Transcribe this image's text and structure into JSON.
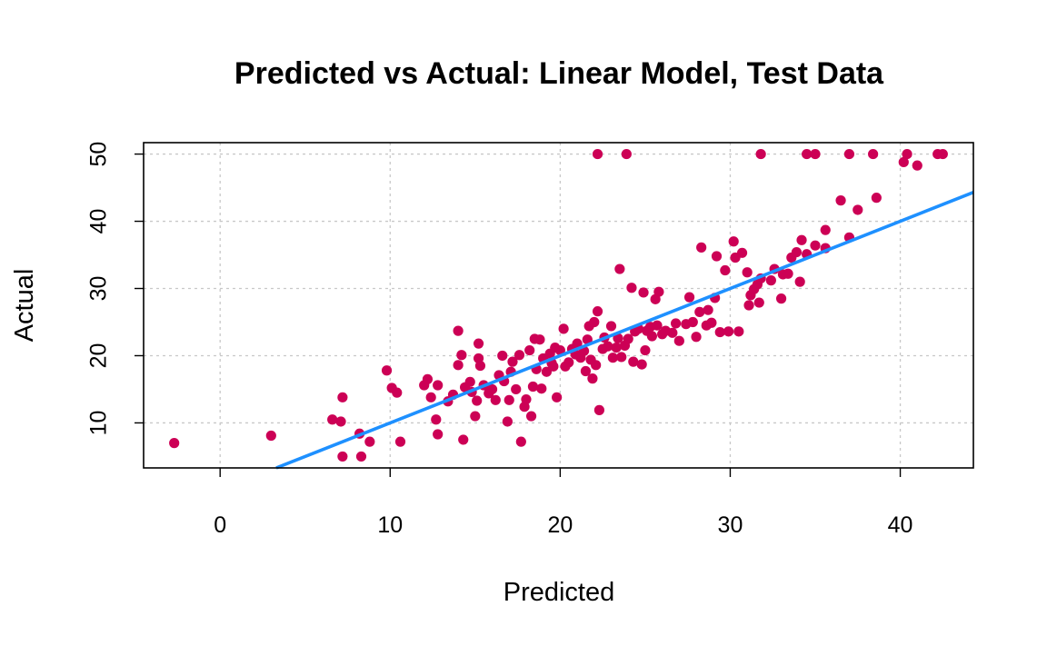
{
  "chart_data": {
    "type": "scatter",
    "title": "Predicted vs Actual: Linear Model, Test Data",
    "xlabel": "Predicted",
    "ylabel": "Actual",
    "xlim": [
      -4.5,
      44.3
    ],
    "ylim": [
      3.3,
      51.7
    ],
    "xticks": [
      0,
      10,
      20,
      30,
      40
    ],
    "yticks": [
      10,
      20,
      30,
      40,
      50
    ],
    "grid": true,
    "point_color": "#CC0055",
    "line_color": "#1E90FF",
    "reference_line": {
      "slope": 1,
      "intercept": 0
    },
    "points": [
      [
        -2.7,
        7.0
      ],
      [
        3.0,
        8.1
      ],
      [
        6.6,
        10.5
      ],
      [
        7.1,
        10.2
      ],
      [
        7.2,
        13.8
      ],
      [
        7.2,
        5.0
      ],
      [
        8.2,
        8.4
      ],
      [
        8.3,
        5.0
      ],
      [
        8.8,
        7.2
      ],
      [
        9.8,
        17.8
      ],
      [
        10.1,
        15.2
      ],
      [
        10.4,
        14.5
      ],
      [
        10.6,
        7.2
      ],
      [
        12.0,
        15.6
      ],
      [
        12.2,
        16.5
      ],
      [
        12.4,
        13.8
      ],
      [
        12.7,
        10.5
      ],
      [
        12.8,
        15.6
      ],
      [
        12.8,
        8.3
      ],
      [
        13.4,
        13.2
      ],
      [
        13.7,
        14.2
      ],
      [
        14.0,
        23.7
      ],
      [
        14.0,
        18.6
      ],
      [
        14.2,
        20.1
      ],
      [
        14.3,
        7.5
      ],
      [
        14.4,
        15.3
      ],
      [
        14.7,
        16.1
      ],
      [
        14.8,
        14.6
      ],
      [
        15.0,
        11.0
      ],
      [
        15.1,
        13.3
      ],
      [
        15.2,
        19.6
      ],
      [
        15.2,
        21.8
      ],
      [
        15.3,
        18.5
      ],
      [
        15.5,
        15.6
      ],
      [
        15.8,
        14.4
      ],
      [
        16.0,
        15.0
      ],
      [
        16.2,
        13.4
      ],
      [
        16.4,
        17.1
      ],
      [
        16.6,
        20.0
      ],
      [
        16.7,
        16.2
      ],
      [
        16.9,
        10.2
      ],
      [
        17.0,
        13.4
      ],
      [
        17.1,
        17.6
      ],
      [
        17.2,
        19.1
      ],
      [
        17.4,
        15.0
      ],
      [
        17.6,
        20.1
      ],
      [
        17.7,
        7.2
      ],
      [
        17.9,
        12.4
      ],
      [
        18.0,
        13.5
      ],
      [
        18.2,
        20.8
      ],
      [
        18.3,
        11.0
      ],
      [
        18.4,
        15.4
      ],
      [
        18.5,
        22.5
      ],
      [
        18.6,
        18.0
      ],
      [
        18.8,
        22.4
      ],
      [
        18.9,
        15.1
      ],
      [
        19.0,
        19.6
      ],
      [
        19.2,
        17.6
      ],
      [
        19.4,
        20.3
      ],
      [
        19.5,
        18.9
      ],
      [
        19.6,
        18.4
      ],
      [
        19.7,
        21.2
      ],
      [
        19.8,
        13.8
      ],
      [
        20.0,
        20.8
      ],
      [
        20.2,
        24.0
      ],
      [
        20.3,
        18.4
      ],
      [
        20.5,
        19.0
      ],
      [
        20.7,
        21.0
      ],
      [
        20.9,
        20.2
      ],
      [
        21.0,
        21.8
      ],
      [
        21.2,
        19.7
      ],
      [
        21.4,
        20.7
      ],
      [
        21.5,
        17.7
      ],
      [
        21.6,
        22.4
      ],
      [
        21.7,
        24.4
      ],
      [
        21.8,
        19.4
      ],
      [
        21.9,
        16.6
      ],
      [
        22.0,
        25.0
      ],
      [
        22.1,
        18.6
      ],
      [
        22.2,
        26.6
      ],
      [
        22.3,
        11.9
      ],
      [
        22.5,
        21.0
      ],
      [
        22.6,
        22.7
      ],
      [
        22.8,
        21.4
      ],
      [
        23.0,
        24.4
      ],
      [
        23.1,
        19.7
      ],
      [
        23.3,
        21.2
      ],
      [
        23.4,
        22.6
      ],
      [
        23.5,
        32.9
      ],
      [
        23.6,
        19.8
      ],
      [
        23.8,
        21.5
      ],
      [
        24.0,
        22.5
      ],
      [
        24.2,
        30.1
      ],
      [
        24.3,
        19.1
      ],
      [
        24.4,
        23.6
      ],
      [
        24.6,
        24.0
      ],
      [
        24.8,
        18.7
      ],
      [
        24.9,
        29.4
      ],
      [
        25.0,
        20.8
      ],
      [
        25.1,
        23.7
      ],
      [
        25.3,
        24.3
      ],
      [
        25.4,
        22.9
      ],
      [
        25.6,
        28.4
      ],
      [
        25.7,
        24.5
      ],
      [
        25.8,
        29.5
      ],
      [
        26.0,
        23.2
      ],
      [
        26.2,
        23.7
      ],
      [
        26.6,
        23.4
      ],
      [
        26.8,
        24.8
      ],
      [
        27.0,
        22.2
      ],
      [
        27.4,
        24.7
      ],
      [
        27.6,
        28.7
      ],
      [
        27.8,
        25.0
      ],
      [
        28.0,
        22.8
      ],
      [
        28.2,
        26.5
      ],
      [
        28.3,
        36.1
      ],
      [
        28.6,
        24.5
      ],
      [
        28.7,
        26.8
      ],
      [
        28.9,
        24.9
      ],
      [
        29.1,
        28.6
      ],
      [
        29.2,
        34.8
      ],
      [
        29.4,
        23.5
      ],
      [
        29.7,
        32.7
      ],
      [
        29.9,
        23.6
      ],
      [
        30.2,
        37.0
      ],
      [
        30.3,
        34.6
      ],
      [
        30.5,
        23.6
      ],
      [
        30.7,
        35.3
      ],
      [
        31.0,
        32.4
      ],
      [
        31.1,
        27.5
      ],
      [
        31.2,
        29.0
      ],
      [
        31.4,
        29.9
      ],
      [
        31.6,
        30.6
      ],
      [
        31.7,
        27.9
      ],
      [
        31.8,
        31.5
      ],
      [
        32.4,
        31.2
      ],
      [
        32.6,
        32.9
      ],
      [
        33.0,
        28.5
      ],
      [
        33.1,
        32.1
      ],
      [
        33.4,
        32.2
      ],
      [
        33.6,
        34.6
      ],
      [
        33.9,
        35.4
      ],
      [
        34.1,
        31.0
      ],
      [
        34.2,
        37.2
      ],
      [
        34.5,
        35.1
      ],
      [
        35.0,
        36.4
      ],
      [
        35.6,
        38.7
      ],
      [
        35.6,
        36.0
      ],
      [
        36.5,
        43.1
      ],
      [
        37.0,
        37.6
      ],
      [
        37.5,
        41.7
      ],
      [
        38.6,
        43.5
      ],
      [
        40.2,
        48.8
      ],
      [
        41.0,
        48.3
      ],
      [
        22.2,
        50.0
      ],
      [
        23.9,
        50.0
      ],
      [
        31.8,
        50.0
      ],
      [
        34.5,
        50.0
      ],
      [
        35.0,
        50.0
      ],
      [
        37.0,
        50.0
      ],
      [
        38.4,
        50.0
      ],
      [
        40.4,
        50.0
      ],
      [
        42.2,
        50.0
      ],
      [
        42.5,
        50.0
      ]
    ]
  }
}
